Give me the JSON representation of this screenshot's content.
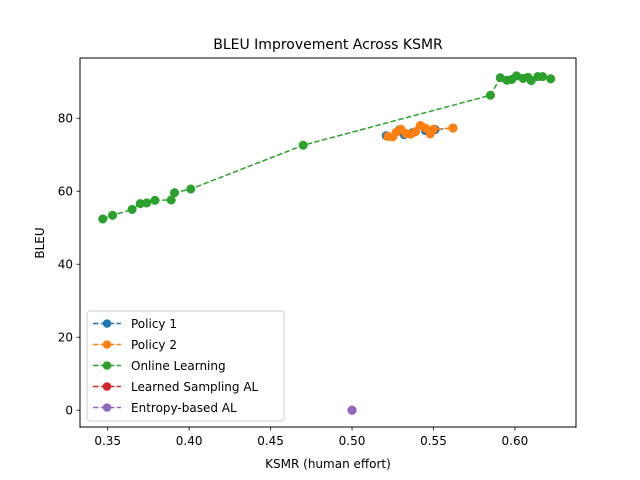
{
  "chart_data": {
    "type": "line",
    "title": "BLEU Improvement Across KSMR",
    "xlabel": "KSMR (human effort)",
    "ylabel": "BLEU",
    "xlim": [
      0.333,
      0.6375
    ],
    "ylim": [
      -4.6,
      96.5
    ],
    "xticks": [
      0.35,
      0.4,
      0.45,
      0.5,
      0.55,
      0.6
    ],
    "xtick_labels": [
      "0.35",
      "0.40",
      "0.45",
      "0.50",
      "0.55",
      "0.60"
    ],
    "yticks": [
      0,
      20,
      40,
      60,
      80
    ],
    "ytick_labels": [
      "0",
      "20",
      "40",
      "60",
      "80"
    ],
    "grid": false,
    "legend_position": "lower-left",
    "series": [
      {
        "name": "Policy 1",
        "color": "#1f77b4",
        "linestyle": "dashed",
        "marker": "circle",
        "points": [
          [
            0.521,
            75.2
          ],
          [
            0.529,
            76.8
          ],
          [
            0.532,
            75.5
          ],
          [
            0.537,
            76.0
          ],
          [
            0.545,
            76.6
          ],
          [
            0.551,
            76.9
          ],
          [
            0.562,
            77.3
          ]
        ]
      },
      {
        "name": "Policy 2",
        "color": "#ff7f0e",
        "linestyle": "dashed",
        "marker": "circle",
        "points": [
          [
            0.522,
            75.0
          ],
          [
            0.525,
            74.9
          ],
          [
            0.527,
            76.1
          ],
          [
            0.53,
            77.0
          ],
          [
            0.533,
            75.8
          ],
          [
            0.536,
            75.6
          ],
          [
            0.539,
            76.3
          ],
          [
            0.542,
            78.0
          ],
          [
            0.545,
            77.3
          ],
          [
            0.548,
            75.7
          ],
          [
            0.55,
            77.0
          ],
          [
            0.562,
            77.3
          ]
        ]
      },
      {
        "name": "Online Learning",
        "color": "#2ca02c",
        "linestyle": "dashed",
        "marker": "circle",
        "points": [
          [
            0.347,
            52.4
          ],
          [
            0.353,
            53.4
          ],
          [
            0.365,
            55.0
          ],
          [
            0.37,
            56.6
          ],
          [
            0.374,
            56.8
          ],
          [
            0.379,
            57.5
          ],
          [
            0.389,
            57.6
          ],
          [
            0.391,
            59.6
          ],
          [
            0.401,
            60.6
          ],
          [
            0.47,
            72.6
          ],
          [
            0.585,
            86.3
          ],
          [
            0.591,
            91.1
          ],
          [
            0.595,
            90.4
          ],
          [
            0.598,
            90.6
          ],
          [
            0.601,
            91.6
          ],
          [
            0.605,
            90.9
          ],
          [
            0.608,
            91.2
          ],
          [
            0.61,
            90.3
          ],
          [
            0.614,
            91.4
          ],
          [
            0.617,
            91.4
          ],
          [
            0.622,
            90.8
          ]
        ]
      },
      {
        "name": "Learned Sampling AL",
        "color": "#d62728",
        "linestyle": "dashed",
        "marker": "circle",
        "points": [
          [
            0.5,
            0.0
          ]
        ]
      },
      {
        "name": "Entropy-based AL",
        "color": "#9467bd",
        "linestyle": "dashed",
        "marker": "circle",
        "points": [
          [
            0.5,
            0.0
          ]
        ]
      }
    ]
  }
}
